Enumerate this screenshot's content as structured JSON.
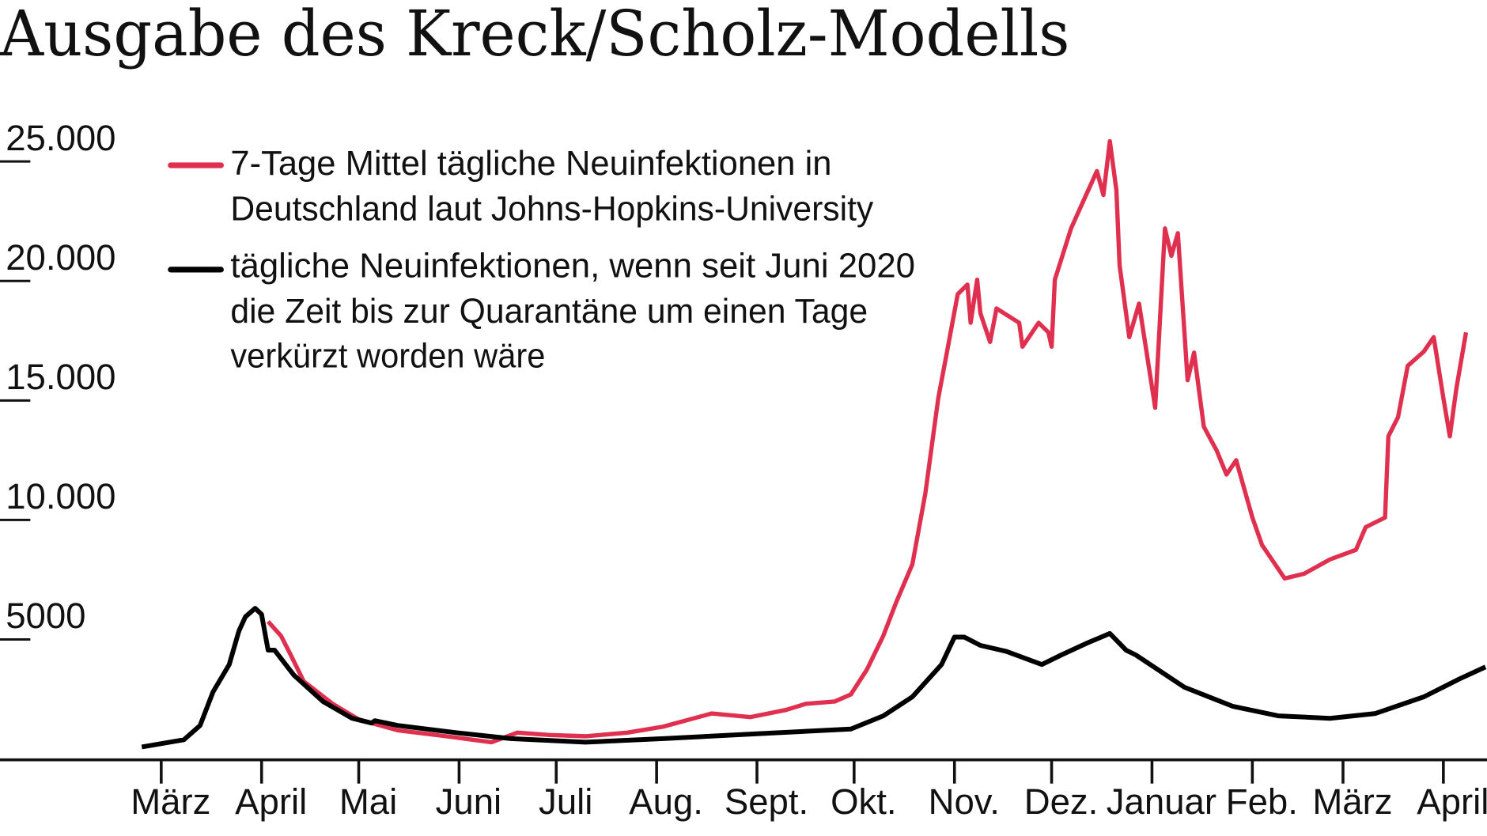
{
  "chart_data": {
    "type": "line",
    "title": "Ausgabe des Kreck/Scholz-Modells",
    "xlabel": "",
    "ylabel": "",
    "ylim": [
      0,
      25000
    ],
    "xlim": [
      "2020-02-24",
      "2021-04-14"
    ],
    "grid": false,
    "legend_position": "top-left",
    "y_ticks": [
      {
        "value": 25000,
        "label": "25.000"
      },
      {
        "value": 20000,
        "label": "20.000"
      },
      {
        "value": 15000,
        "label": "15.000"
      },
      {
        "value": 10000,
        "label": "10.000"
      },
      {
        "value": 5000,
        "label": "5000"
      }
    ],
    "x_ticks": [
      {
        "date": "2020-03-01",
        "label": "März"
      },
      {
        "date": "2020-04-01",
        "label": "April"
      },
      {
        "date": "2020-05-01",
        "label": "Mai"
      },
      {
        "date": "2020-06-01",
        "label": "Juni"
      },
      {
        "date": "2020-07-01",
        "label": "Juli"
      },
      {
        "date": "2020-08-01",
        "label": "Aug."
      },
      {
        "date": "2020-09-01",
        "label": "Sept."
      },
      {
        "date": "2020-10-01",
        "label": "Okt."
      },
      {
        "date": "2020-11-01",
        "label": "Nov."
      },
      {
        "date": "2020-12-01",
        "label": "Dez."
      },
      {
        "date": "2021-01-01",
        "label": "Januar"
      },
      {
        "date": "2021-02-01",
        "label": "Feb."
      },
      {
        "date": "2021-03-01",
        "label": "März"
      },
      {
        "date": "2021-04-01",
        "label": "April"
      }
    ],
    "series": [
      {
        "name": "7-Tage Mittel tägliche Neuinfektionen in Deutschland laut Johns-Hopkins-University",
        "legend_lines": [
          "7-Tage Mittel tägliche Neuinfektionen in",
          "Deutschland laut Johns-Hopkins-University"
        ],
        "color": "#e0304f",
        "points": [
          [
            "2020-04-03",
            5750
          ],
          [
            "2020-04-07",
            5150
          ],
          [
            "2020-04-10",
            4350
          ],
          [
            "2020-04-14",
            3250
          ],
          [
            "2020-04-23",
            2300
          ],
          [
            "2020-05-01",
            1650
          ],
          [
            "2020-05-13",
            1200
          ],
          [
            "2020-05-28",
            950
          ],
          [
            "2020-06-11",
            700
          ],
          [
            "2020-06-19",
            1100
          ],
          [
            "2020-06-29",
            1000
          ],
          [
            "2020-07-10",
            950
          ],
          [
            "2020-07-23",
            1100
          ],
          [
            "2020-08-03",
            1350
          ],
          [
            "2020-08-18",
            1900
          ],
          [
            "2020-08-30",
            1750
          ],
          [
            "2020-09-10",
            2050
          ],
          [
            "2020-09-16",
            2300
          ],
          [
            "2020-09-25",
            2400
          ],
          [
            "2020-09-30",
            2700
          ],
          [
            "2020-10-05",
            3750
          ],
          [
            "2020-10-10",
            5150
          ],
          [
            "2020-10-14",
            6550
          ],
          [
            "2020-10-19",
            8150
          ],
          [
            "2020-10-23",
            11100
          ],
          [
            "2020-10-27",
            15100
          ],
          [
            "2020-10-30",
            17250
          ],
          [
            "2020-11-02",
            19450
          ],
          [
            "2020-11-05",
            19850
          ],
          [
            "2020-11-06",
            18250
          ],
          [
            "2020-11-08",
            20050
          ],
          [
            "2020-11-09",
            18650
          ],
          [
            "2020-11-12",
            17450
          ],
          [
            "2020-11-14",
            18850
          ],
          [
            "2020-11-21",
            18250
          ],
          [
            "2020-11-22",
            17250
          ],
          [
            "2020-11-27",
            18250
          ],
          [
            "2020-11-30",
            17850
          ],
          [
            "2020-12-01",
            17250
          ],
          [
            "2020-12-02",
            20050
          ],
          [
            "2020-12-07",
            22200
          ],
          [
            "2020-12-11",
            23400
          ],
          [
            "2020-12-15",
            24600
          ],
          [
            "2020-12-17",
            23600
          ],
          [
            "2020-12-19",
            25850
          ],
          [
            "2020-12-21",
            23800
          ],
          [
            "2020-12-22",
            20650
          ],
          [
            "2020-12-25",
            17650
          ],
          [
            "2020-12-28",
            19050
          ],
          [
            "2021-01-02",
            14700
          ],
          [
            "2021-01-05",
            22200
          ],
          [
            "2021-01-07",
            21050
          ],
          [
            "2021-01-09",
            22000
          ],
          [
            "2021-01-12",
            15850
          ],
          [
            "2021-01-14",
            17000
          ],
          [
            "2021-01-17",
            13900
          ],
          [
            "2021-01-21",
            12900
          ],
          [
            "2021-01-24",
            11900
          ],
          [
            "2021-01-27",
            12500
          ],
          [
            "2021-02-01",
            10100
          ],
          [
            "2021-02-04",
            8950
          ],
          [
            "2021-02-11",
            7550
          ],
          [
            "2021-02-17",
            7750
          ],
          [
            "2021-02-25",
            8350
          ],
          [
            "2021-03-05",
            8750
          ],
          [
            "2021-03-08",
            9700
          ],
          [
            "2021-03-14",
            10100
          ],
          [
            "2021-03-15",
            13500
          ],
          [
            "2021-03-18",
            14300
          ],
          [
            "2021-03-21",
            16450
          ],
          [
            "2021-03-26",
            17050
          ],
          [
            "2021-03-29",
            17650
          ],
          [
            "2021-04-01",
            15100
          ],
          [
            "2021-04-03",
            13500
          ],
          [
            "2021-04-05",
            15500
          ],
          [
            "2021-04-08",
            17850
          ]
        ]
      },
      {
        "name": "tägliche Neuinfektionen, wenn seit Juni 2020 die Zeit bis zur Quarantäne um einen Tage verkürzt worden wäre",
        "legend_lines": [
          "tägliche Neuinfektionen, wenn seit Juni 2020",
          "die Zeit bis zur Quarantäne um einen Tage",
          "verkürzt worden wäre"
        ],
        "color": "#000000",
        "points": [
          [
            "2020-02-24",
            500
          ],
          [
            "2020-03-08",
            800
          ],
          [
            "2020-03-13",
            1400
          ],
          [
            "2020-03-17",
            2800
          ],
          [
            "2020-03-22",
            3950
          ],
          [
            "2020-03-25",
            5350
          ],
          [
            "2020-03-27",
            5950
          ],
          [
            "2020-03-30",
            6300
          ],
          [
            "2020-04-01",
            6050
          ],
          [
            "2020-04-03",
            4550
          ],
          [
            "2020-04-05",
            4550
          ],
          [
            "2020-04-11",
            3500
          ],
          [
            "2020-04-20",
            2400
          ],
          [
            "2020-04-29",
            1700
          ],
          [
            "2020-05-05",
            1500
          ],
          [
            "2020-05-06",
            1600
          ],
          [
            "2020-05-13",
            1400
          ],
          [
            "2020-05-31",
            1100
          ],
          [
            "2020-06-17",
            850
          ],
          [
            "2020-07-10",
            700
          ],
          [
            "2020-08-03",
            850
          ],
          [
            "2020-09-01",
            1050
          ],
          [
            "2020-09-30",
            1250
          ],
          [
            "2020-10-10",
            1800
          ],
          [
            "2020-10-19",
            2600
          ],
          [
            "2020-10-28",
            3950
          ],
          [
            "2020-11-01",
            5100
          ],
          [
            "2020-11-04",
            5100
          ],
          [
            "2020-11-09",
            4750
          ],
          [
            "2020-11-17",
            4500
          ],
          [
            "2020-11-28",
            3950
          ],
          [
            "2020-12-04",
            4350
          ],
          [
            "2020-12-12",
            4850
          ],
          [
            "2020-12-19",
            5250
          ],
          [
            "2020-12-24",
            4550
          ],
          [
            "2020-12-27",
            4350
          ],
          [
            "2021-01-11",
            3000
          ],
          [
            "2021-01-26",
            2200
          ],
          [
            "2021-02-09",
            1800
          ],
          [
            "2021-02-25",
            1700
          ],
          [
            "2021-03-11",
            1900
          ],
          [
            "2021-03-26",
            2600
          ],
          [
            "2021-04-06",
            3350
          ],
          [
            "2021-04-14",
            3850
          ]
        ]
      }
    ]
  }
}
